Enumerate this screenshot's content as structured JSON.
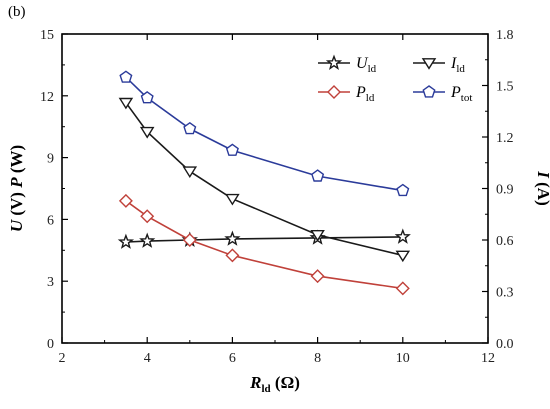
{
  "panel_label": "(b)",
  "chart_data": {
    "type": "line",
    "x": [
      3.5,
      4,
      5,
      6,
      8,
      10
    ],
    "xlim": [
      2,
      12
    ],
    "xticks": [
      2,
      4,
      6,
      8,
      10,
      12
    ],
    "ylim_left": [
      0,
      15
    ],
    "yticks_left": [
      0,
      3,
      6,
      9,
      12,
      15
    ],
    "ylim_right": [
      0,
      1.8
    ],
    "yticks_right": [
      "0.0",
      "0.3",
      "0.6",
      "0.9",
      "1.2",
      "1.5",
      "1.8"
    ],
    "xlabel": {
      "main": "R",
      "sub": "ld",
      "unit": " (Ω)"
    },
    "ylabel_left": {
      "u": "U",
      "u_unit": " (V)  ",
      "p": "P",
      "p_unit": " (W)"
    },
    "ylabel_right": {
      "main": "I",
      "unit": " (A)"
    },
    "legend_position": "top-right",
    "series": [
      {
        "key": "U_ld",
        "name_main": "U",
        "name_sub": "ld",
        "axis": "left",
        "marker": "star",
        "color": "#1a1a1a",
        "values": [
          4.9,
          4.95,
          5.0,
          5.05,
          5.1,
          5.15
        ]
      },
      {
        "key": "I_ld",
        "name_main": "I",
        "name_sub": "ld",
        "axis": "right",
        "marker": "triangle-down",
        "color": "#1a1a1a",
        "values": [
          1.4,
          1.23,
          1.0,
          0.84,
          0.63,
          0.51
        ]
      },
      {
        "key": "P_ld",
        "name_main": "P",
        "name_sub": "ld",
        "axis": "left",
        "marker": "diamond",
        "color": "#c0413a",
        "values": [
          6.9,
          6.15,
          5.0,
          4.25,
          3.25,
          2.65
        ]
      },
      {
        "key": "P_tot",
        "name_main": "P",
        "name_sub": "tot",
        "axis": "left",
        "marker": "pentagon",
        "color": "#2b3b9a",
        "values": [
          12.9,
          11.9,
          10.4,
          9.35,
          8.1,
          7.4
        ]
      }
    ]
  }
}
